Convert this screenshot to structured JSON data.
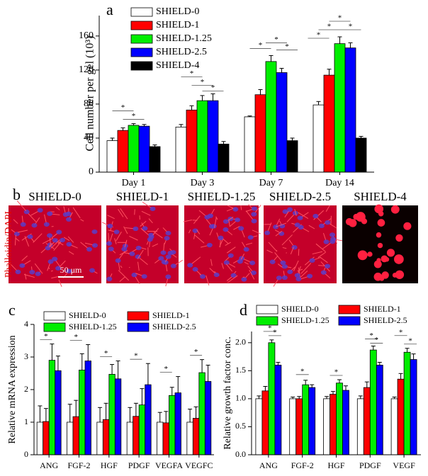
{
  "chart_data": [
    {
      "type": "bar",
      "label": "a",
      "y_label": "Cell number per gel (10³)",
      "categories": [
        "Day 1",
        "Day 3",
        "Day 7",
        "Day 14"
      ],
      "series": [
        {
          "name": "SHIELD-0",
          "color": "#ffffff",
          "values": [
            37,
            53,
            65,
            79
          ],
          "errors": [
            3,
            3,
            1,
            4
          ]
        },
        {
          "name": "SHIELD-1",
          "color": "#ff0000",
          "values": [
            49,
            73,
            91,
            114
          ],
          "errors": [
            3,
            5,
            6,
            7
          ]
        },
        {
          "name": "SHIELD-1.25",
          "color": "#00ee00",
          "values": [
            55,
            84,
            130,
            151
          ],
          "errors": [
            2,
            6,
            7,
            8
          ]
        },
        {
          "name": "SHIELD-2.5",
          "color": "#0000ff",
          "values": [
            54,
            84,
            117,
            146
          ],
          "errors": [
            2,
            8,
            5,
            6
          ]
        },
        {
          "name": "SHIELD-4",
          "color": "#000000",
          "values": [
            30,
            33,
            37,
            40
          ],
          "errors": [
            2,
            3,
            3,
            2
          ]
        }
      ],
      "ylim": [
        0,
        184
      ],
      "yticks": [
        0,
        40,
        80,
        120,
        160
      ],
      "significance": [
        "*",
        "*",
        "*",
        "*",
        "*",
        "*",
        "*",
        "*",
        "*",
        "*",
        "*",
        "*"
      ]
    },
    {
      "type": "bar",
      "label": "c",
      "y_label": "Relative mRNA expression",
      "categories": [
        "ANG",
        "FGF-2",
        "HGF",
        "PDGF",
        "VEGFA",
        "VEGFC"
      ],
      "series": [
        {
          "name": "SHIELD-0",
          "color": "#ffffff",
          "values": [
            1.0,
            1.0,
            1.0,
            1.0,
            1.0,
            1.0
          ],
          "errors": [
            0.5,
            0.55,
            0.45,
            0.45,
            0.3,
            0.4
          ]
        },
        {
          "name": "SHIELD-1",
          "color": "#ff0000",
          "values": [
            1.02,
            1.17,
            1.08,
            1.18,
            0.98,
            1.12
          ],
          "errors": [
            0.4,
            0.5,
            0.5,
            0.4,
            0.35,
            0.35
          ]
        },
        {
          "name": "SHIELD-1.25",
          "color": "#00ee00",
          "values": [
            2.9,
            2.6,
            2.47,
            1.53,
            1.82,
            2.52
          ],
          "errors": [
            0.5,
            0.5,
            0.3,
            0.5,
            0.25,
            0.4
          ]
        },
        {
          "name": "SHIELD-2.5",
          "color": "#0000ff",
          "values": [
            2.58,
            2.88,
            2.33,
            2.15,
            1.9,
            2.25
          ],
          "errors": [
            0.45,
            0.5,
            0.55,
            0.65,
            0.5,
            0.5
          ]
        }
      ],
      "ylim": [
        0,
        4
      ],
      "yticks": [
        0,
        1,
        2,
        3,
        4
      ],
      "significance": [
        "*",
        "*",
        "*",
        "*",
        "*",
        "*"
      ]
    },
    {
      "type": "bar",
      "label": "d",
      "y_label": "Relative growth factor conc.",
      "categories": [
        "ANG",
        "FGF-2",
        "HGF",
        "PDGF",
        "VEGF"
      ],
      "series": [
        {
          "name": "SHIELD-0",
          "color": "#ffffff",
          "values": [
            1.0,
            1.0,
            1.0,
            1.0,
            1.0
          ],
          "errors": [
            0.05,
            0.03,
            0.04,
            0.05,
            0.03
          ]
        },
        {
          "name": "SHIELD-1",
          "color": "#ff0000",
          "values": [
            1.14,
            1.0,
            1.08,
            1.2,
            1.35
          ],
          "errors": [
            0.08,
            0.04,
            0.05,
            0.1,
            0.1
          ]
        },
        {
          "name": "SHIELD-1.25",
          "color": "#00ee00",
          "values": [
            2.0,
            1.25,
            1.28,
            1.87,
            1.83
          ],
          "errors": [
            0.05,
            0.08,
            0.06,
            0.07,
            0.07
          ]
        },
        {
          "name": "SHIELD-2.5",
          "color": "#0000ff",
          "values": [
            1.6,
            1.2,
            1.15,
            1.6,
            1.7
          ],
          "errors": [
            0.05,
            0.05,
            0.08,
            0.05,
            0.1
          ]
        }
      ],
      "ylim": [
        0,
        2.2
      ],
      "yticks": [
        {
          "value": 0,
          "label": "0.0"
        },
        {
          "value": 0.5,
          "label": "0.5"
        },
        {
          "value": 1,
          "label": "1.0"
        },
        {
          "value": 1.5,
          "label": "1.5"
        },
        {
          "value": 2,
          "label": "2.0"
        }
      ],
      "significance": [
        "*",
        "*",
        "*",
        "*",
        "*",
        "*",
        "*",
        "*"
      ]
    }
  ],
  "panel_b": {
    "label": "b",
    "titles": [
      "SHIELD-0",
      "SHIELD-1",
      "SHIELD-1.25",
      "SHIELD-2.5",
      "SHIELD-4"
    ],
    "stain": "Phalloidin/DAPI",
    "scale_bar": "50 μm"
  }
}
